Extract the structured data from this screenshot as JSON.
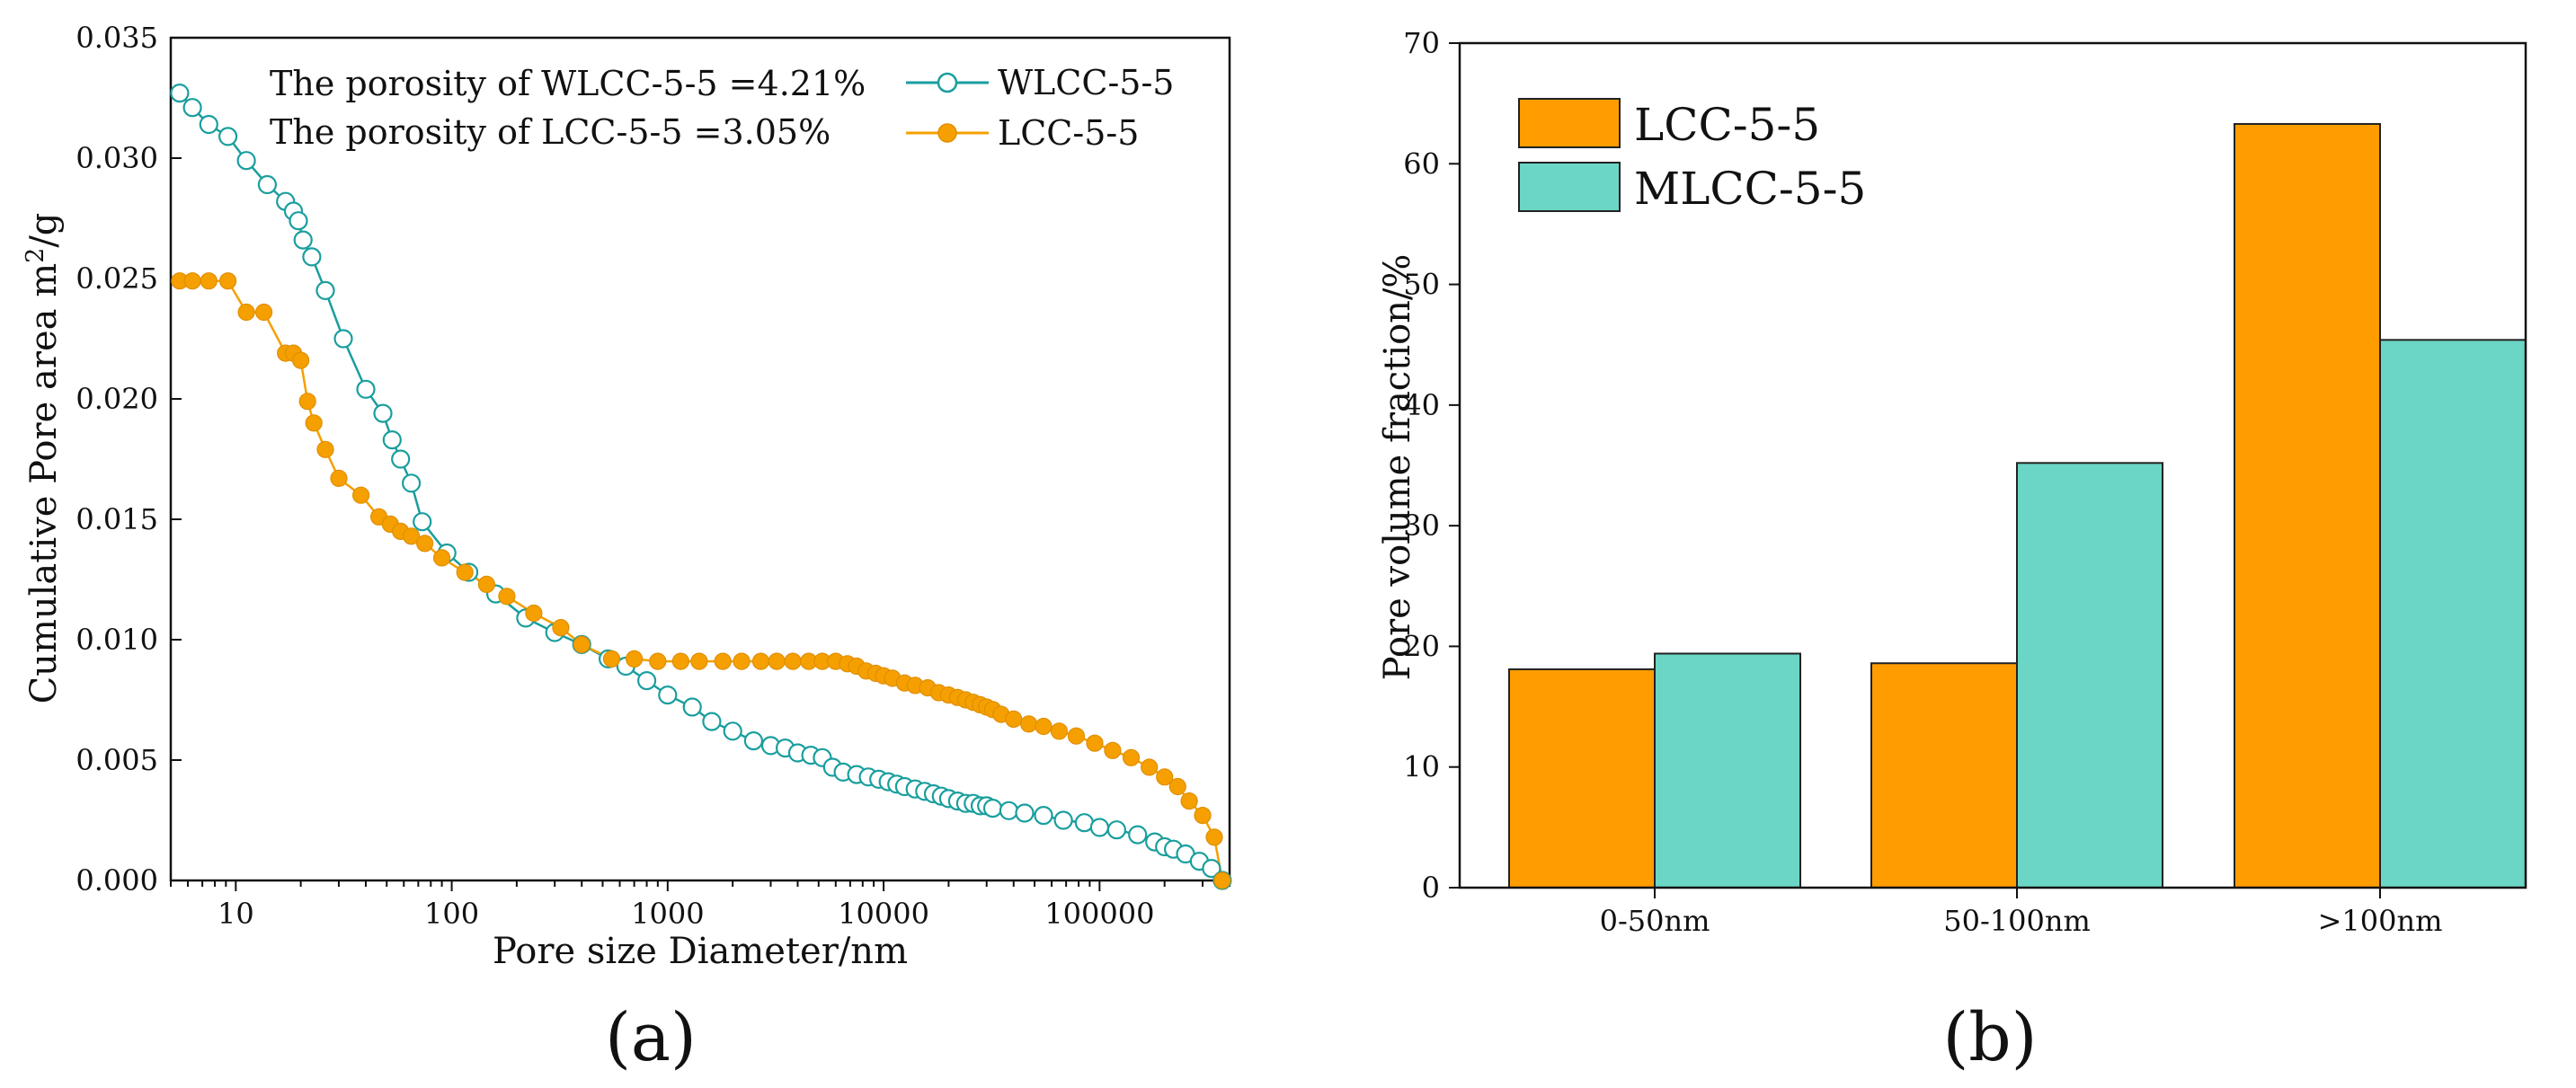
{
  "panel_labels": [
    "(a)",
    "(b)"
  ],
  "chart_data": [
    {
      "type": "scatter",
      "title": "",
      "xlabel": "Pore size Diameter/nm",
      "ylabel_main": "Cumulative Pore area m",
      "ylabel_sup": "2",
      "ylabel_tail": "/g",
      "xscale": "log",
      "xlim": [
        5,
        400000
      ],
      "ylim": [
        0,
        0.035
      ],
      "xticks": [
        {
          "value": 10,
          "label": "10"
        },
        {
          "value": 100,
          "label": "100"
        },
        {
          "value": 1000,
          "label": "1000"
        },
        {
          "value": 10000,
          "label": "10000"
        },
        {
          "value": 100000,
          "label": "100000"
        }
      ],
      "yticks": [
        {
          "value": 0,
          "label": "0.000"
        },
        {
          "value": 0.005,
          "label": "0.005"
        },
        {
          "value": 0.01,
          "label": "0.010"
        },
        {
          "value": 0.015,
          "label": "0.015"
        },
        {
          "value": 0.02,
          "label": "0.020"
        },
        {
          "value": 0.025,
          "label": "0.025"
        },
        {
          "value": 0.03,
          "label": "0.030"
        },
        {
          "value": 0.035,
          "label": "0.035"
        }
      ],
      "annotations": [
        "The porosity of WLCC-5-5 =4.21%",
        "The porosity of  LCC-5-5 =3.05%"
      ],
      "legend_position": "top-right",
      "series": [
        {
          "name": "WLCC-5-5",
          "color": "#1a9e9e",
          "marker": "open-circle",
          "x": [
            5.5,
            6.3,
            7.5,
            9.2,
            11.2,
            14,
            17,
            18.5,
            19.5,
            20.5,
            22.5,
            26,
            31.5,
            40,
            48,
            53,
            58,
            65,
            73,
            95,
            120,
            160,
            220,
            300,
            400,
            530,
            640,
            800,
            1000,
            1300,
            1600,
            2000,
            2500,
            3000,
            3500,
            4000,
            4600,
            5200,
            5800,
            6500,
            7500,
            8500,
            9500,
            10500,
            11500,
            12500,
            14000,
            15500,
            17000,
            18500,
            20000,
            22000,
            24000,
            26000,
            28000,
            30000,
            32000,
            38000,
            45000,
            55000,
            68000,
            85000,
            100000,
            120000,
            150000,
            180000,
            200000,
            220000,
            250000,
            290000,
            330000,
            370000
          ],
          "y": [
            0.0327,
            0.0321,
            0.0314,
            0.0309,
            0.0299,
            0.0289,
            0.0282,
            0.0278,
            0.0274,
            0.0266,
            0.0259,
            0.0245,
            0.0225,
            0.0204,
            0.0194,
            0.0183,
            0.0175,
            0.0165,
            0.0149,
            0.0136,
            0.0128,
            0.0119,
            0.0109,
            0.0103,
            0.0098,
            0.0092,
            0.0089,
            0.0083,
            0.0077,
            0.0072,
            0.0066,
            0.0062,
            0.0058,
            0.0056,
            0.0055,
            0.0053,
            0.0052,
            0.0051,
            0.0047,
            0.0045,
            0.0044,
            0.0043,
            0.0042,
            0.0041,
            0.004,
            0.0039,
            0.0038,
            0.0037,
            0.0036,
            0.0035,
            0.0034,
            0.0033,
            0.0032,
            0.0032,
            0.0031,
            0.0031,
            0.003,
            0.0029,
            0.0028,
            0.0027,
            0.0025,
            0.0024,
            0.0022,
            0.0021,
            0.0019,
            0.0016,
            0.0014,
            0.0013,
            0.0011,
            0.0008,
            0.0005,
            0.0
          ]
        },
        {
          "name": "LCC-5-5",
          "color": "#f5a000",
          "marker": "filled-circle",
          "x": [
            5.5,
            6.3,
            7.5,
            9.2,
            11.2,
            13.5,
            17,
            18.5,
            20,
            21.5,
            23,
            26,
            30,
            38,
            46,
            52,
            58,
            65,
            75,
            90,
            115,
            145,
            180,
            240,
            320,
            400,
            550,
            700,
            900,
            1150,
            1400,
            1800,
            2200,
            2700,
            3200,
            3800,
            4500,
            5200,
            6000,
            6800,
            7500,
            8300,
            9200,
            10000,
            11000,
            12500,
            14000,
            16000,
            18000,
            20000,
            22000,
            24000,
            26000,
            28000,
            30000,
            32000,
            35000,
            40000,
            47000,
            55000,
            65000,
            78000,
            95000,
            115000,
            140000,
            170000,
            200000,
            230000,
            260000,
            300000,
            340000,
            370000
          ],
          "y": [
            0.0249,
            0.0249,
            0.0249,
            0.0249,
            0.0236,
            0.0236,
            0.0219,
            0.0219,
            0.0216,
            0.0199,
            0.019,
            0.0179,
            0.0167,
            0.016,
            0.0151,
            0.0148,
            0.0145,
            0.0143,
            0.014,
            0.0134,
            0.0128,
            0.0123,
            0.0118,
            0.0111,
            0.0105,
            0.0098,
            0.0092,
            0.0092,
            0.0091,
            0.0091,
            0.0091,
            0.0091,
            0.0091,
            0.0091,
            0.0091,
            0.0091,
            0.0091,
            0.0091,
            0.0091,
            0.009,
            0.0089,
            0.0087,
            0.0086,
            0.0085,
            0.0084,
            0.0082,
            0.0081,
            0.008,
            0.0078,
            0.0077,
            0.0076,
            0.0075,
            0.0074,
            0.0073,
            0.0072,
            0.0071,
            0.0069,
            0.0067,
            0.0065,
            0.0064,
            0.0062,
            0.006,
            0.0057,
            0.0054,
            0.0051,
            0.0047,
            0.0043,
            0.0039,
            0.0033,
            0.0027,
            0.0018,
            0.0
          ]
        }
      ]
    },
    {
      "type": "bar",
      "title": "",
      "xlabel": "",
      "ylabel": "Pore volume fraction/%",
      "ylim": [
        0,
        70
      ],
      "yticks": [
        0,
        10,
        20,
        30,
        40,
        50,
        60,
        70
      ],
      "categories": [
        "0-50nm",
        "50-100nm",
        ">100nm"
      ],
      "legend_position": "top-left",
      "series": [
        {
          "name": "LCC-5-5",
          "color": "#ff9d00",
          "values": [
            18.1,
            18.6,
            63.3
          ]
        },
        {
          "name": "MLCC-5-5",
          "color": "#6bd6c5",
          "values": [
            19.4,
            35.2,
            45.4
          ]
        }
      ]
    }
  ]
}
